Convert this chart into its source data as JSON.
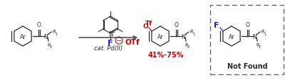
{
  "bg_color": "#ffffff",
  "red_color": "#cc0000",
  "blue_color": "#1a1aff",
  "black_color": "#2a2a2a",
  "yield_text": "41%-75%",
  "not_found_text": "Not Found",
  "cat_text": "cat. Pd(II)",
  "F_label": "F",
  "OTf_label": "OTf",
  "minus_color": "#cc0000"
}
